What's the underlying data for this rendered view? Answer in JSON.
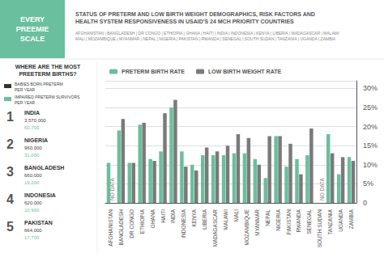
{
  "chart_data": {
    "type": "bar",
    "title": "STATUS OF PRETERM AND LOW BIRTH WEIGHT DEMOGRAPHICS, RISK FACTORS AND\nHEALTH SYSTEM RESPONSIVENESS IN USAID'S 24 MCH PRIORITY COUNTRIES",
    "subtitle": "AFGHANISTAN | BANGLADESH | DR CONGO | ETHIOPIA | GHANA | HAITI | INDIA | INDONESIA | KENYA | LIBERIA | MADAGASCAR | MALAWI\nMALI | MOZAMBIQUE | MYANMAR | NEPAL | NIGERIA | PAKISTAN | RWANDA | SENEGAL | SOUTH SUDAN | TANZANIA | UGANDA | ZAMBIA",
    "categories": [
      "AFGHANISTAN",
      "BANGLADESH",
      "DR CONGO",
      "ETHIOPIA",
      "GHANA",
      "HAITI",
      "INDIA",
      "INDONESIA",
      "KENYA",
      "LIBERIA",
      "MADAGASCAR",
      "MALAWI",
      "MALI",
      "MOZAMBIQUE",
      "MYANMAR",
      "NEPAL",
      "NIGERIA",
      "PAKISTAN",
      "RWANDA",
      "SENEGAL",
      "SOUTH SUDAN",
      "TANZANIA",
      "UGANDA",
      "ZAMBIA"
    ],
    "series": [
      {
        "name": "PRETERM BIRTH RATE",
        "color": "#6abf9e",
        "values": [
          10.5,
          19.0,
          10.5,
          20.5,
          11.5,
          13.5,
          25.0,
          13.5,
          10.0,
          12.5,
          12.5,
          12.5,
          13.0,
          13.0,
          11.5,
          6.5,
          17.5,
          9.5,
          11.5,
          12.5,
          0,
          18.0,
          7.5,
          12.0
        ]
      },
      {
        "name": "LOW BIRTH WEIGHT RATE",
        "color": "#7a7a7a",
        "values": [
          0,
          22.0,
          10.5,
          21.0,
          11.0,
          23.5,
          27.0,
          9.5,
          8.5,
          14.5,
          13.5,
          15.0,
          18.0,
          17.0,
          10.0,
          17.5,
          17.5,
          15.5,
          7.5,
          19.5,
          0,
          13.0,
          12.0,
          11.0
        ]
      }
    ],
    "ylim": [
      0,
      32
    ],
    "yticks": [
      0,
      {
        "value": 5,
        "label": "5%"
      },
      {
        "value": 10,
        "label": "10%"
      },
      {
        "value": 15,
        "label": "15%"
      },
      {
        "value": 20,
        "label": "20%"
      },
      {
        "value": 25,
        "label": "25%"
      },
      {
        "value": 30,
        "label": "30%"
      }
    ],
    "grid": true,
    "legend": "top left",
    "annotations": [
      {
        "text": "EVERY\nPREEMIE\nSCALE",
        "color": "#6abf9e"
      },
      {
        "text": "WHERE ARE THE MOST\nPREETERM BIRTHS?"
      },
      {
        "text": "BABIES BORN PRETERM\nPER YEAR",
        "color": "#333333"
      },
      {
        "text": "IMPAIRED PRETERM SURVIVORS\nPER YEAR",
        "color": "#6abf9e"
      },
      {
        "text": "1"
      },
      {
        "text": "INDIA"
      },
      {
        "text": "3,570,000"
      },
      {
        "text": "60,700",
        "color": "#6abf9e"
      },
      {
        "text": "2"
      },
      {
        "text": "NIGERIA"
      },
      {
        "text": "960,000"
      },
      {
        "text": "31,000",
        "color": "#6abf9e"
      },
      {
        "text": "3"
      },
      {
        "text": "BANGLADESH"
      },
      {
        "text": "660,000"
      },
      {
        "text": "19,200",
        "color": "#6abf9e"
      },
      {
        "text": "4"
      },
      {
        "text": "INDONESIA"
      },
      {
        "text": "620,000"
      },
      {
        "text": "10,900",
        "color": "#6abf9e"
      },
      {
        "text": "5"
      },
      {
        "text": "PAKISTAN"
      },
      {
        "text": "664,000"
      },
      {
        "text": "17,700",
        "color": "#6abf9e"
      },
      {
        "text": "NO DATA",
        "x": "AFGHANISTAN"
      },
      {
        "text": "NO DATA",
        "x": "SOUTH SUDAN"
      }
    ]
  }
}
